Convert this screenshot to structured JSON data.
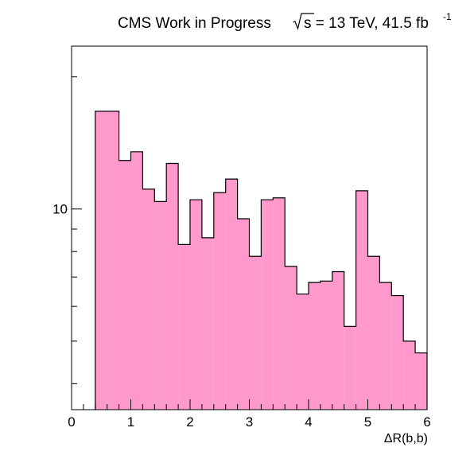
{
  "chart_data": {
    "type": "bar",
    "title": {
      "prefix": "CMS Work in Progress",
      "energy_text": "s = 13 TeV, 41.5 fb",
      "exponent": "-1"
    },
    "xlabel": "ΔR(b,b)",
    "ylabel": "",
    "x_ticks": [
      "0",
      "1",
      "2",
      "3",
      "4",
      "5",
      "6"
    ],
    "y_tick_labels": [
      "10"
    ],
    "xlim": [
      0,
      6
    ],
    "ylim": [
      3.49,
      23.5
    ],
    "y_scale": "log",
    "grid": false,
    "bin_width": 0.2,
    "bin_edges": [
      0.4,
      0.6,
      0.8,
      1.0,
      1.2,
      1.4,
      1.6,
      1.8,
      2.0,
      2.2,
      2.4,
      2.6,
      2.8,
      3.0,
      3.2,
      3.4,
      3.6,
      3.8,
      4.0,
      4.2,
      4.4,
      4.6,
      4.8,
      5.0,
      5.2,
      5.4,
      5.6,
      5.8,
      6.0
    ],
    "values": [
      16.7,
      16.7,
      12.9,
      13.5,
      11.1,
      10.4,
      12.7,
      8.3,
      10.5,
      8.6,
      10.9,
      11.7,
      9.5,
      7.8,
      10.5,
      10.6,
      7.4,
      6.4,
      6.8,
      6.85,
      7.2,
      5.4,
      11.0,
      7.8,
      6.8,
      6.35,
      5.0,
      4.7
    ],
    "fill_color": "#ff99cc",
    "line_color": "#000000"
  }
}
